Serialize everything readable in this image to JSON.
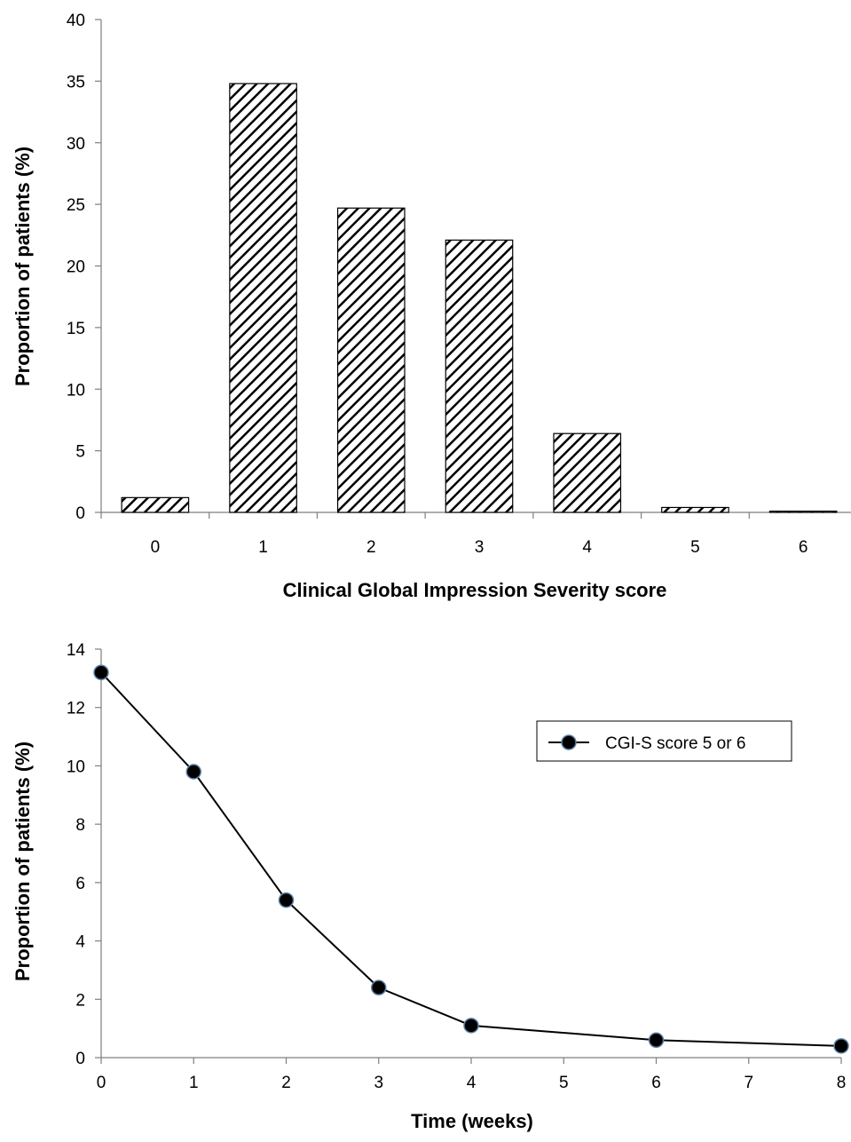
{
  "chart_data": [
    {
      "type": "bar",
      "title": "",
      "xlabel": "Clinical Global Impression Severity score",
      "ylabel": "Proportion of patients (%)",
      "categories": [
        "0",
        "1",
        "2",
        "3",
        "4",
        "5",
        "6"
      ],
      "values": [
        1.2,
        34.8,
        24.7,
        22.1,
        6.4,
        0.4,
        0.1
      ],
      "ylim": [
        0,
        40
      ],
      "yticks": [
        "0",
        "5",
        "10",
        "15",
        "20",
        "25",
        "30",
        "35",
        "40"
      ],
      "bar_fill": "diagonal hatch",
      "colors": {
        "bar_stroke": "#000000",
        "hatch": "#000000",
        "background": "#ffffff"
      },
      "grid": false,
      "legend": "none"
    },
    {
      "type": "line",
      "title": "",
      "xlabel": "Time (weeks)",
      "ylabel": "Proportion of patients (%)",
      "xticks": [
        "0",
        "1",
        "2",
        "3",
        "4",
        "5",
        "6",
        "7",
        "8"
      ],
      "yticks": [
        "0",
        "2",
        "4",
        "6",
        "8",
        "10",
        "12",
        "14"
      ],
      "xlim": [
        0,
        8
      ],
      "ylim": [
        0,
        14
      ],
      "series": [
        {
          "name": "CGI-S score 5 or 6",
          "x": [
            0,
            1,
            2,
            3,
            4,
            6,
            8
          ],
          "y": [
            13.2,
            9.8,
            5.4,
            2.4,
            1.1,
            0.6,
            0.4
          ],
          "color": "#000000",
          "marker": "filled circle"
        }
      ],
      "grid": false,
      "legend": "top-right"
    }
  ]
}
